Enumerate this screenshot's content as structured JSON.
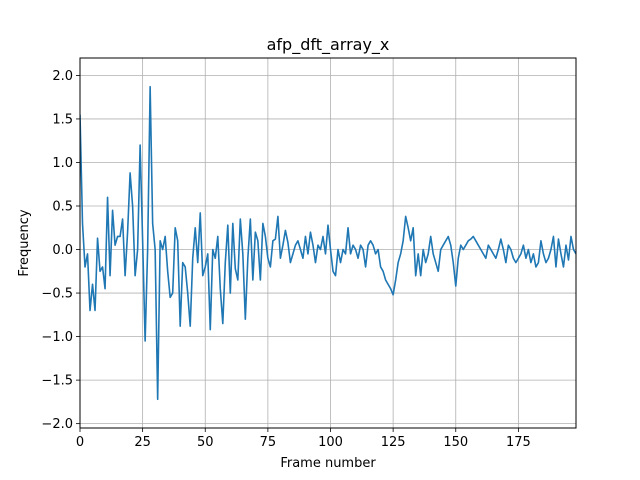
{
  "chart_data": {
    "type": "line",
    "title": "afp_dft_array_x",
    "xlabel": "Frame number",
    "ylabel": "Frequency",
    "xlim": [
      0,
      198
    ],
    "ylim": [
      -2.05,
      2.2
    ],
    "grid": true,
    "line_color": "#1f77b4",
    "x_ticks": [
      0,
      25,
      50,
      75,
      100,
      125,
      150,
      175
    ],
    "y_ticks": [
      -2.0,
      -1.5,
      -1.0,
      -0.5,
      0.0,
      0.5,
      1.0,
      1.5,
      2.0
    ],
    "x_tick_labels": [
      "0",
      "25",
      "50",
      "75",
      "100",
      "125",
      "150",
      "175"
    ],
    "y_tick_labels": [
      "−2.0",
      "−1.5",
      "−1.0",
      "−0.5",
      "0.0",
      "0.5",
      "1.0",
      "1.5",
      "2.0"
    ],
    "series": [
      {
        "values": [
          1.55,
          0.3,
          -0.2,
          -0.05,
          -0.7,
          -0.4,
          -0.7,
          0.13,
          -0.25,
          -0.2,
          -0.45,
          0.6,
          -0.3,
          0.45,
          0.05,
          0.15,
          0.15,
          0.35,
          -0.3,
          0.2,
          0.88,
          0.5,
          -0.3,
          0.0,
          1.2,
          0.1,
          -1.05,
          0.0,
          1.87,
          0.3,
          0.0,
          -1.72,
          0.1,
          0.0,
          0.15,
          -0.25,
          -0.55,
          -0.5,
          0.25,
          0.1,
          -0.88,
          -0.15,
          -0.2,
          -0.5,
          -0.88,
          -0.1,
          0.25,
          -0.15,
          0.42,
          -0.3,
          -0.2,
          -0.05,
          -0.92,
          0.0,
          -0.1,
          0.15,
          -0.45,
          -0.85,
          -0.15,
          0.28,
          -0.5,
          0.3,
          -0.22,
          -0.35,
          0.35,
          -0.05,
          -0.8,
          -0.1,
          0.35,
          -0.35,
          0.2,
          0.1,
          -0.35,
          0.3,
          0.15,
          -0.1,
          -0.2,
          0.1,
          0.12,
          0.38,
          -0.1,
          0.05,
          0.22,
          0.08,
          -0.15,
          -0.05,
          0.05,
          0.1,
          0.0,
          -0.1,
          0.15,
          -0.05,
          0.2,
          0.05,
          -0.15,
          0.05,
          0.0,
          0.15,
          -0.05,
          0.28,
          0.0,
          -0.25,
          -0.3,
          0.0,
          -0.15,
          0.0,
          -0.05,
          0.25,
          -0.05,
          0.05,
          0.0,
          -0.1,
          0.05,
          0.0,
          -0.2,
          0.05,
          0.1,
          0.05,
          -0.05,
          0.0,
          -0.2,
          -0.25,
          -0.35,
          -0.4,
          -0.45,
          -0.52,
          -0.35,
          -0.15,
          -0.05,
          0.1,
          0.38,
          0.25,
          0.1,
          0.25,
          -0.3,
          -0.05,
          -0.3,
          0.0,
          -0.15,
          -0.05,
          0.15,
          -0.05,
          -0.15,
          -0.25,
          0.0,
          0.05,
          0.1,
          0.15,
          0.05,
          -0.15,
          -0.42,
          -0.1,
          0.05,
          0.0,
          0.05,
          0.1,
          0.12,
          0.15,
          0.1,
          0.05,
          0.0,
          -0.05,
          -0.1,
          0.05,
          0.0,
          -0.05,
          -0.1,
          0.0,
          0.12,
          0.0,
          -0.15,
          0.05,
          0.0,
          -0.1,
          -0.15,
          -0.1,
          -0.05,
          0.05,
          -0.1,
          0.0,
          -0.15,
          -0.05,
          -0.2,
          -0.15,
          0.1,
          -0.05,
          -0.15,
          -0.1,
          0.0,
          0.15,
          -0.2,
          0.12,
          -0.05,
          -0.2,
          0.05,
          -0.12,
          0.15,
          0.0,
          -0.05,
          0.05,
          0.15,
          0.0,
          -0.1,
          0.1,
          0.0,
          -0.12
        ]
      }
    ]
  }
}
